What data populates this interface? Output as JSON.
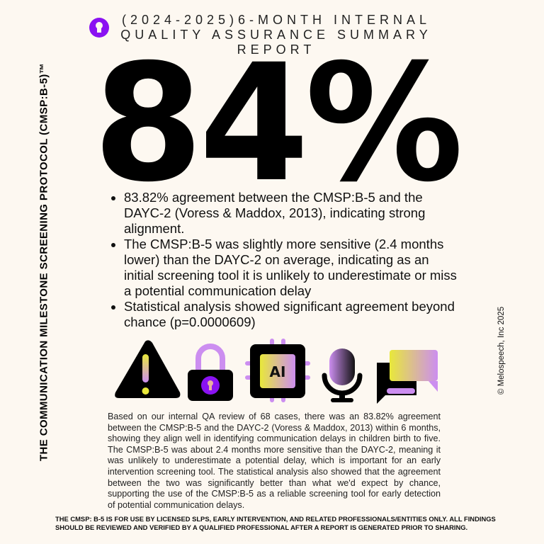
{
  "header": {
    "logo_icon": "keyhole-icon",
    "title": "(2024-2025)6-MONTH INTERNAL QUALITY ASSURANCE SUMMARY REPORT"
  },
  "headline": {
    "value": "84%"
  },
  "bullets": [
    "83.82% agreement between the CMSP:B-5 and the DAYC-2 (Voress & Maddox, 2013), indicating strong alignment.",
    "The CMSP:B-5 was slightly more sensitive (2.4 months lower) than the DAYC-2 on average, indicating as an initial screening tool it is unlikely to underestimate or miss a potential communication delay",
    "Statistical analysis showed significant agreement beyond chance (p=0.0000609)"
  ],
  "icons": [
    "warning-icon",
    "lock-icon",
    "ai-chip-icon",
    "microphone-icon",
    "chat-bubbles-icon"
  ],
  "ai_chip_label": "AI",
  "summary": "Based on our internal QA review of 68 cases, there was an 83.82% agreement between the CMSP:B-5 and the DAYC-2 (Voress & Maddox, 2013) within 6 months, showing they align well in identifying communication delays in children birth to five. The CMSP:B-5 was about 2.4 months more sensitive than the DAYC-2, meaning it was unlikely to underestimate a potential delay, which is important for an early intervention screening tool. The statistical analysis also showed that the agreement between the two was significantly better than what we'd expect by chance, supporting the use of the CMSP:B-5 as a reliable screening tool for early detection of potential communication delays.",
  "disclaimer": "THE CMSP: B-5 IS FOR USE BY LICENSED SLPS, EARLY INTERVENTION, AND RELATED PROFESSIONALS/ENTITIES ONLY. ALL FINDINGS SHOULD BE REVIEWED AND VERIFIED BY A QUALIFIED PROFESSIONAL AFTER A REPORT IS GENERATED PRIOR TO SHARING.",
  "side_title": "THE COMMUNICATION MILESTONE SCREENING PROTOCOL (CMSP:B-5)™",
  "copyright": "© Melospeech, Inc 2025",
  "colors": {
    "background": "#fdf8f1",
    "purple": "#8a12f2",
    "lavender": "#cc8ef0",
    "yellow": "#e8e83a"
  }
}
